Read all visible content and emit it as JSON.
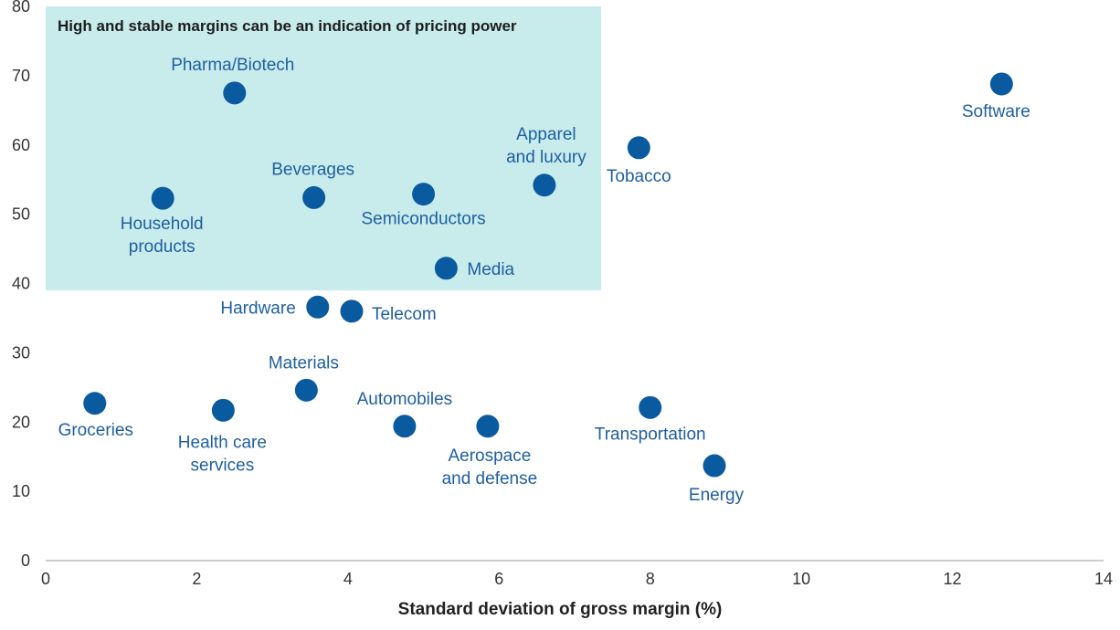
{
  "chart_data": {
    "type": "scatter",
    "xlabel": "Standard deviation of gross margin (%)",
    "ylabel": "",
    "xlim": [
      0,
      14
    ],
    "ylim": [
      0,
      80
    ],
    "x_ticks": [
      0,
      2,
      4,
      6,
      8,
      10,
      12,
      14
    ],
    "y_ticks": [
      0,
      10,
      20,
      30,
      40,
      50,
      60,
      70,
      80
    ],
    "grid": false,
    "marker_color": "#0a5aa0",
    "label_color": "#1f5fa0",
    "highlight": {
      "text": "High and stable margins can be an indication of pricing power",
      "x_range": [
        0,
        7.35
      ],
      "y_range": [
        39,
        80
      ],
      "color": "#c8ecec"
    },
    "points": [
      {
        "label": "Pharma/Biotech",
        "x": 2.5,
        "y": 67.5
      },
      {
        "label": "Software",
        "x": 12.65,
        "y": 68.8
      },
      {
        "label": "Tobacco",
        "x": 7.85,
        "y": 59.6
      },
      {
        "label": "Apparel and luxury",
        "x": 6.6,
        "y": 54.2
      },
      {
        "label": "Beverages",
        "x": 3.55,
        "y": 52.4
      },
      {
        "label": "Semiconductors",
        "x": 5.0,
        "y": 52.9
      },
      {
        "label": "Household products",
        "x": 1.55,
        "y": 52.3
      },
      {
        "label": "Media",
        "x": 5.3,
        "y": 42.2
      },
      {
        "label": "Hardware",
        "x": 3.6,
        "y": 36.6
      },
      {
        "label": "Telecom",
        "x": 4.05,
        "y": 36.0
      },
      {
        "label": "Materials",
        "x": 3.45,
        "y": 24.6
      },
      {
        "label": "Groceries",
        "x": 0.65,
        "y": 22.7
      },
      {
        "label": "Health care services",
        "x": 2.35,
        "y": 21.7
      },
      {
        "label": "Transportation",
        "x": 8.0,
        "y": 22.1
      },
      {
        "label": "Automobiles",
        "x": 4.75,
        "y": 19.4
      },
      {
        "label": "Aerospace and defense",
        "x": 5.85,
        "y": 19.4
      },
      {
        "label": "Energy",
        "x": 8.85,
        "y": 13.7
      }
    ]
  }
}
